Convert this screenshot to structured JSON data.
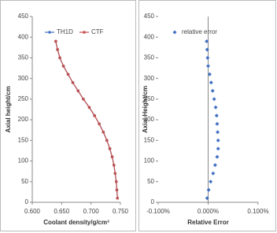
{
  "chart_data": [
    {
      "type": "line",
      "x_label": "Coolant density/g/cm³",
      "y_label": "Axial height/cm",
      "y": [
        10,
        30,
        50,
        70,
        90,
        110,
        130,
        150,
        170,
        190,
        210,
        230,
        250,
        270,
        290,
        310,
        330,
        350,
        370,
        390
      ],
      "series": [
        {
          "name": "TH1D",
          "color": "#4472c4",
          "values": [
            0.745,
            0.744,
            0.743,
            0.741,
            0.739,
            0.736,
            0.732,
            0.727,
            0.721,
            0.714,
            0.706,
            0.697,
            0.687,
            0.678,
            0.669,
            0.661,
            0.653,
            0.647,
            0.643,
            0.64
          ]
        },
        {
          "name": "CTF",
          "color": "#c0504d",
          "values": [
            0.745,
            0.744,
            0.743,
            0.741,
            0.739,
            0.736,
            0.732,
            0.727,
            0.721,
            0.714,
            0.706,
            0.697,
            0.687,
            0.678,
            0.669,
            0.661,
            0.653,
            0.647,
            0.643,
            0.64
          ]
        }
      ],
      "xlim": [
        0.6,
        0.75
      ],
      "xticks": [
        {
          "value": 0.6,
          "label": "0.600"
        },
        {
          "value": 0.65,
          "label": "0.650"
        },
        {
          "value": 0.7,
          "label": "0.700"
        },
        {
          "value": 0.75,
          "label": "0.750"
        }
      ],
      "ylim": [
        0,
        450
      ],
      "yticks": [
        0,
        50,
        100,
        150,
        200,
        250,
        300,
        350,
        400,
        450
      ],
      "legend": "top"
    },
    {
      "type": "scatter",
      "x_label": "Relative Error",
      "y_label": "Axial Height/cm",
      "y": [
        10,
        30,
        50,
        70,
        90,
        110,
        130,
        150,
        170,
        190,
        210,
        230,
        250,
        270,
        290,
        310,
        330,
        350,
        370,
        390
      ],
      "series": [
        {
          "name": "relative error",
          "color": "#4472c4",
          "values": [
            -0.002,
            0.001,
            0.005,
            0.01,
            0.014,
            0.018,
            0.02,
            0.02,
            0.019,
            0.018,
            0.017,
            0.015,
            0.012,
            0.009,
            0.006,
            0.003,
            0.0,
            -0.001,
            -0.002,
            -0.003
          ]
        }
      ],
      "xlim": [
        -0.1,
        0.1
      ],
      "xticks": [
        {
          "value": -0.1,
          "label": "-0.100%"
        },
        {
          "value": 0,
          "label": "0.000%"
        },
        {
          "value": 0.1,
          "label": "0.100%"
        }
      ],
      "ylim": [
        0,
        450
      ],
      "yticks": [
        0,
        50,
        100,
        150,
        200,
        250,
        300,
        350,
        400,
        450
      ],
      "legend": "top-left"
    }
  ]
}
